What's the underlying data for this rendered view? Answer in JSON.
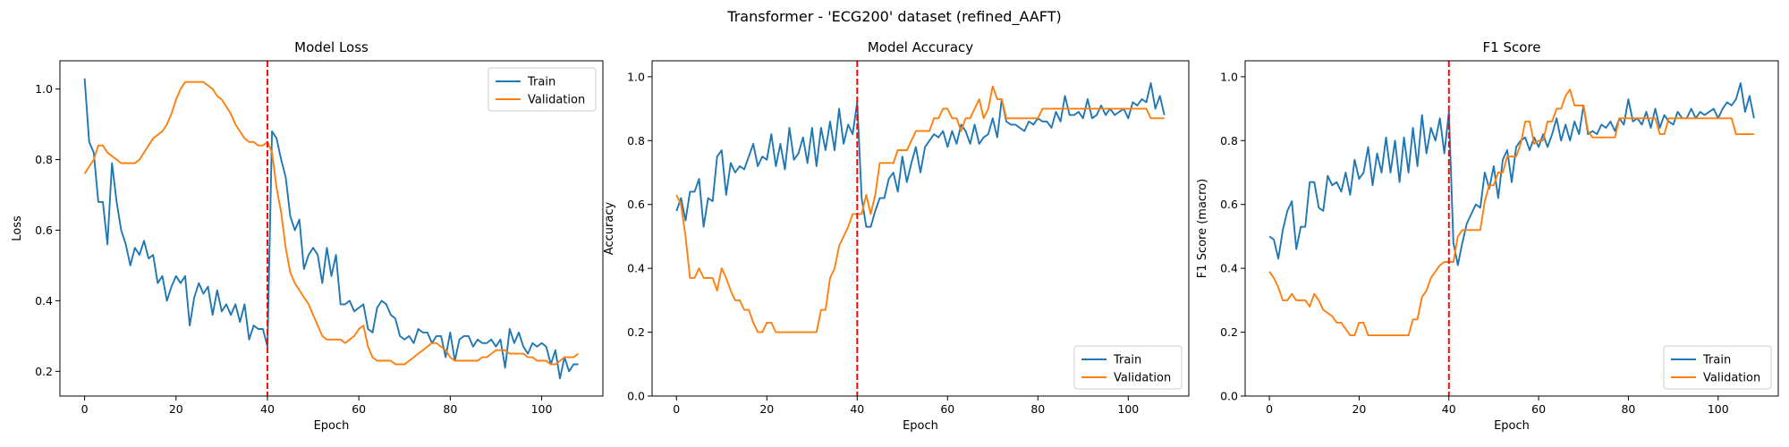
{
  "figure": {
    "suptitle": "Transformer - 'ECG200' dataset (refined_AAFT)"
  },
  "chart_data": [
    {
      "type": "line",
      "title": "Model Loss",
      "xlabel": "Epoch",
      "ylabel": "Loss",
      "xlim": [
        -5.4,
        113.4
      ],
      "ylim": [
        0.13,
        1.08
      ],
      "xticks": [
        0,
        20,
        40,
        60,
        80,
        100
      ],
      "yticks": [
        0.2,
        0.4,
        0.6,
        0.8,
        1.0
      ],
      "ytick_format": 1,
      "legend_position": "upper-right",
      "vline": 40,
      "series": [
        {
          "name": "Train",
          "color": "#1f77b4",
          "values": [
            1.03,
            0.85,
            0.82,
            0.68,
            0.68,
            0.56,
            0.79,
            0.68,
            0.6,
            0.56,
            0.5,
            0.55,
            0.53,
            0.57,
            0.52,
            0.53,
            0.45,
            0.47,
            0.4,
            0.44,
            0.47,
            0.45,
            0.47,
            0.33,
            0.41,
            0.45,
            0.42,
            0.44,
            0.36,
            0.43,
            0.37,
            0.39,
            0.36,
            0.39,
            0.34,
            0.39,
            0.29,
            0.33,
            0.32,
            0.32,
            0.27,
            0.88,
            0.86,
            0.8,
            0.75,
            0.64,
            0.6,
            0.63,
            0.49,
            0.53,
            0.55,
            0.53,
            0.45,
            0.55,
            0.47,
            0.53,
            0.39,
            0.39,
            0.4,
            0.37,
            0.38,
            0.39,
            0.32,
            0.31,
            0.38,
            0.4,
            0.39,
            0.36,
            0.35,
            0.3,
            0.29,
            0.3,
            0.28,
            0.32,
            0.31,
            0.31,
            0.28,
            0.3,
            0.3,
            0.24,
            0.31,
            0.23,
            0.29,
            0.3,
            0.3,
            0.27,
            0.29,
            0.28,
            0.28,
            0.29,
            0.27,
            0.29,
            0.21,
            0.32,
            0.28,
            0.31,
            0.27,
            0.25,
            0.28,
            0.27,
            0.28,
            0.27,
            0.22,
            0.26,
            0.18,
            0.24,
            0.2,
            0.22,
            0.22
          ]
        },
        {
          "name": "Validation",
          "color": "#ff7f0e",
          "values": [
            0.76,
            0.78,
            0.8,
            0.84,
            0.84,
            0.82,
            0.81,
            0.8,
            0.79,
            0.79,
            0.79,
            0.79,
            0.8,
            0.82,
            0.84,
            0.86,
            0.87,
            0.88,
            0.9,
            0.93,
            0.97,
            1.0,
            1.02,
            1.02,
            1.02,
            1.02,
            1.02,
            1.01,
            1.0,
            0.98,
            0.97,
            0.95,
            0.93,
            0.9,
            0.88,
            0.86,
            0.85,
            0.85,
            0.84,
            0.84,
            0.85,
            0.82,
            0.72,
            0.65,
            0.55,
            0.48,
            0.45,
            0.43,
            0.41,
            0.39,
            0.36,
            0.33,
            0.3,
            0.29,
            0.29,
            0.29,
            0.29,
            0.28,
            0.29,
            0.3,
            0.32,
            0.33,
            0.27,
            0.24,
            0.23,
            0.23,
            0.23,
            0.23,
            0.22,
            0.22,
            0.22,
            0.23,
            0.24,
            0.25,
            0.26,
            0.27,
            0.28,
            0.28,
            0.27,
            0.26,
            0.24,
            0.23,
            0.23,
            0.23,
            0.23,
            0.23,
            0.23,
            0.24,
            0.24,
            0.25,
            0.26,
            0.26,
            0.26,
            0.25,
            0.25,
            0.25,
            0.25,
            0.24,
            0.24,
            0.23,
            0.23,
            0.23,
            0.22,
            0.22,
            0.23,
            0.24,
            0.24,
            0.24,
            0.25
          ]
        }
      ]
    },
    {
      "type": "line",
      "title": "Model Accuracy",
      "xlabel": "Epoch",
      "ylabel": "Accuracy",
      "xlim": [
        -5.4,
        113.4
      ],
      "ylim": [
        0.0,
        1.05
      ],
      "xticks": [
        0,
        20,
        40,
        60,
        80,
        100
      ],
      "yticks": [
        0.0,
        0.2,
        0.4,
        0.6,
        0.8,
        1.0
      ],
      "ytick_format": 1,
      "legend_position": "lower-right",
      "vline": 40,
      "series": [
        {
          "name": "Train",
          "color": "#1f77b4",
          "values": [
            0.58,
            0.62,
            0.55,
            0.64,
            0.64,
            0.68,
            0.53,
            0.62,
            0.61,
            0.75,
            0.77,
            0.63,
            0.73,
            0.7,
            0.72,
            0.71,
            0.75,
            0.79,
            0.72,
            0.75,
            0.74,
            0.82,
            0.72,
            0.79,
            0.71,
            0.84,
            0.74,
            0.76,
            0.81,
            0.73,
            0.84,
            0.72,
            0.84,
            0.77,
            0.86,
            0.77,
            0.9,
            0.79,
            0.85,
            0.82,
            0.92,
            0.62,
            0.53,
            0.53,
            0.58,
            0.62,
            0.62,
            0.68,
            0.7,
            0.64,
            0.75,
            0.67,
            0.73,
            0.78,
            0.7,
            0.78,
            0.8,
            0.82,
            0.81,
            0.83,
            0.78,
            0.83,
            0.79,
            0.85,
            0.83,
            0.79,
            0.85,
            0.79,
            0.81,
            0.82,
            0.87,
            0.81,
            0.93,
            0.86,
            0.85,
            0.85,
            0.84,
            0.83,
            0.86,
            0.85,
            0.87,
            0.86,
            0.86,
            0.84,
            0.89,
            0.86,
            0.94,
            0.88,
            0.88,
            0.89,
            0.87,
            0.93,
            0.87,
            0.88,
            0.91,
            0.88,
            0.9,
            0.88,
            0.89,
            0.9,
            0.87,
            0.92,
            0.91,
            0.93,
            0.92,
            0.98,
            0.9,
            0.94,
            0.88
          ]
        },
        {
          "name": "Validation",
          "color": "#ff7f0e",
          "values": [
            0.63,
            0.6,
            0.5,
            0.37,
            0.37,
            0.4,
            0.37,
            0.37,
            0.37,
            0.33,
            0.4,
            0.37,
            0.33,
            0.3,
            0.3,
            0.27,
            0.27,
            0.23,
            0.2,
            0.2,
            0.23,
            0.23,
            0.2,
            0.2,
            0.2,
            0.2,
            0.2,
            0.2,
            0.2,
            0.2,
            0.2,
            0.2,
            0.27,
            0.27,
            0.37,
            0.4,
            0.47,
            0.5,
            0.53,
            0.57,
            0.57,
            0.57,
            0.63,
            0.57,
            0.63,
            0.73,
            0.73,
            0.73,
            0.73,
            0.77,
            0.77,
            0.77,
            0.8,
            0.83,
            0.83,
            0.83,
            0.83,
            0.87,
            0.87,
            0.9,
            0.9,
            0.87,
            0.87,
            0.83,
            0.87,
            0.87,
            0.9,
            0.93,
            0.87,
            0.9,
            0.97,
            0.93,
            0.93,
            0.87,
            0.87,
            0.87,
            0.87,
            0.87,
            0.87,
            0.87,
            0.87,
            0.9,
            0.9,
            0.9,
            0.9,
            0.9,
            0.9,
            0.9,
            0.9,
            0.9,
            0.9,
            0.9,
            0.9,
            0.9,
            0.9,
            0.9,
            0.9,
            0.9,
            0.9,
            0.9,
            0.9,
            0.9,
            0.9,
            0.9,
            0.9,
            0.87,
            0.87,
            0.87,
            0.87
          ]
        }
      ]
    },
    {
      "type": "line",
      "title": "F1 Score",
      "xlabel": "Epoch",
      "ylabel": "F1 Score (macro)",
      "xlim": [
        -5.4,
        113.4
      ],
      "ylim": [
        0.0,
        1.05
      ],
      "xticks": [
        0,
        20,
        40,
        60,
        80,
        100
      ],
      "yticks": [
        0.0,
        0.2,
        0.4,
        0.6,
        0.8,
        1.0
      ],
      "ytick_format": 1,
      "legend_position": "lower-right",
      "vline": 40,
      "series": [
        {
          "name": "Train",
          "color": "#1f77b4",
          "values": [
            0.5,
            0.49,
            0.43,
            0.52,
            0.58,
            0.61,
            0.46,
            0.53,
            0.53,
            0.67,
            0.67,
            0.59,
            0.58,
            0.69,
            0.66,
            0.67,
            0.64,
            0.7,
            0.63,
            0.74,
            0.68,
            0.7,
            0.78,
            0.66,
            0.76,
            0.7,
            0.81,
            0.7,
            0.8,
            0.67,
            0.81,
            0.7,
            0.84,
            0.72,
            0.88,
            0.76,
            0.84,
            0.8,
            0.87,
            0.76,
            0.89,
            0.48,
            0.41,
            0.48,
            0.54,
            0.57,
            0.6,
            0.59,
            0.7,
            0.65,
            0.72,
            0.62,
            0.74,
            0.77,
            0.67,
            0.78,
            0.8,
            0.81,
            0.77,
            0.81,
            0.78,
            0.82,
            0.78,
            0.82,
            0.87,
            0.8,
            0.85,
            0.8,
            0.86,
            0.82,
            0.91,
            0.82,
            0.83,
            0.82,
            0.85,
            0.84,
            0.86,
            0.83,
            0.87,
            0.85,
            0.93,
            0.86,
            0.87,
            0.85,
            0.89,
            0.84,
            0.9,
            0.84,
            0.88,
            0.86,
            0.85,
            0.89,
            0.87,
            0.87,
            0.9,
            0.87,
            0.89,
            0.88,
            0.89,
            0.9,
            0.87,
            0.9,
            0.92,
            0.91,
            0.93,
            0.98,
            0.89,
            0.94,
            0.87
          ]
        },
        {
          "name": "Validation",
          "color": "#ff7f0e",
          "values": [
            0.39,
            0.37,
            0.34,
            0.3,
            0.3,
            0.32,
            0.3,
            0.3,
            0.3,
            0.28,
            0.32,
            0.3,
            0.27,
            0.26,
            0.25,
            0.23,
            0.23,
            0.21,
            0.19,
            0.19,
            0.23,
            0.23,
            0.19,
            0.19,
            0.19,
            0.19,
            0.19,
            0.19,
            0.19,
            0.19,
            0.19,
            0.19,
            0.24,
            0.24,
            0.31,
            0.33,
            0.37,
            0.39,
            0.41,
            0.42,
            0.42,
            0.42,
            0.5,
            0.52,
            0.52,
            0.52,
            0.52,
            0.52,
            0.61,
            0.66,
            0.66,
            0.7,
            0.7,
            0.75,
            0.75,
            0.75,
            0.79,
            0.86,
            0.86,
            0.79,
            0.8,
            0.8,
            0.86,
            0.86,
            0.9,
            0.9,
            0.94,
            0.96,
            0.91,
            0.91,
            0.91,
            0.83,
            0.81,
            0.81,
            0.81,
            0.81,
            0.81,
            0.81,
            0.87,
            0.87,
            0.87,
            0.87,
            0.87,
            0.87,
            0.87,
            0.87,
            0.87,
            0.82,
            0.82,
            0.87,
            0.87,
            0.87,
            0.87,
            0.87,
            0.87,
            0.87,
            0.87,
            0.87,
            0.87,
            0.87,
            0.87,
            0.87,
            0.87,
            0.87,
            0.82,
            0.82,
            0.82,
            0.82,
            0.82
          ]
        }
      ]
    }
  ]
}
